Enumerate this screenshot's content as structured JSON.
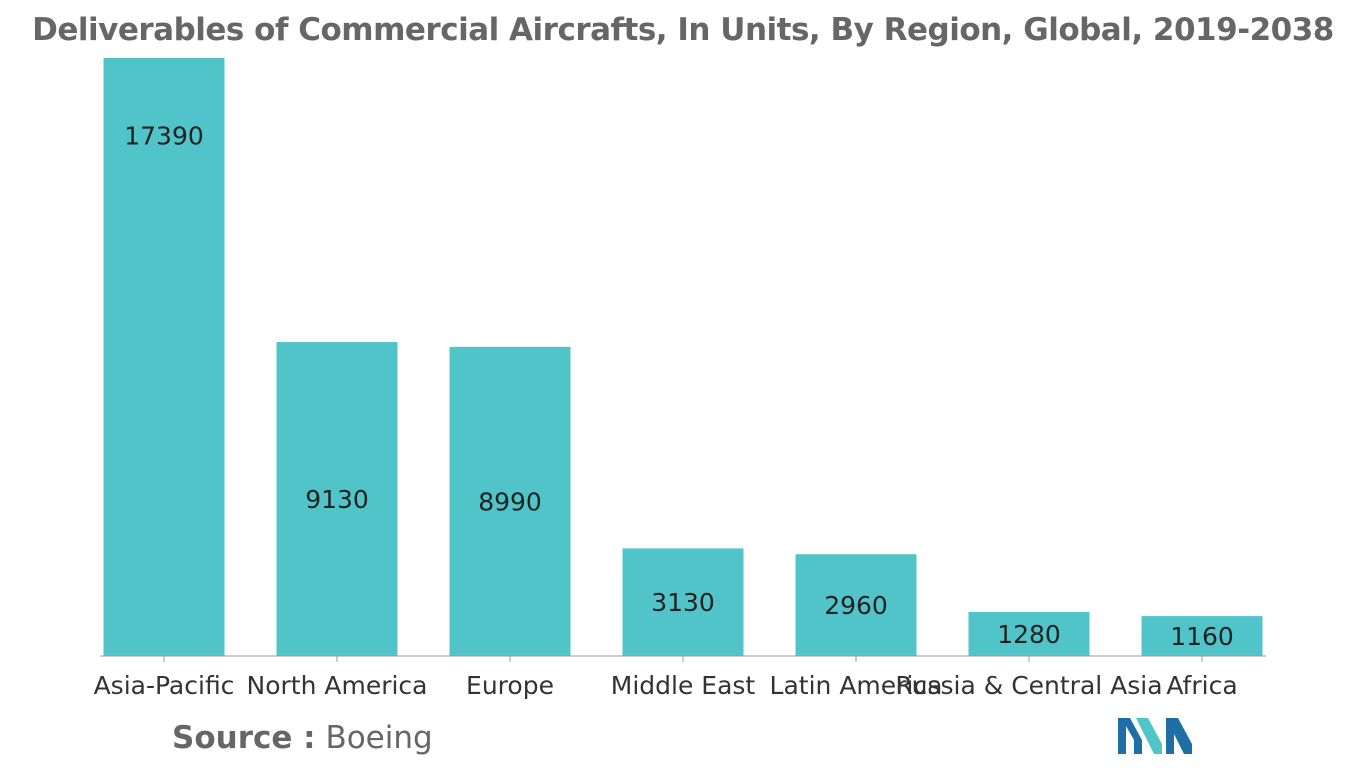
{
  "chart_data": {
    "type": "bar",
    "title": "Deliverables of Commercial Aircrafts, In Units, By Region, Global, 2019-2038",
    "categories": [
      "Asia-Pacific",
      "North America",
      "Europe",
      "Middle East",
      "Latin America",
      "Russia & Central Asia",
      "Africa"
    ],
    "values": [
      17390,
      9130,
      8990,
      3130,
      2960,
      1280,
      1160
    ],
    "xlabel": "",
    "ylabel": "",
    "ylim": [
      0,
      17390
    ],
    "grid": false,
    "legend": "none",
    "bar_color": "#50c4c9",
    "value_labels": [
      "17390",
      "9130",
      "8990",
      "3130",
      "2960",
      "1280",
      "1160"
    ]
  },
  "source": {
    "label": "Source :",
    "value": "Boeing"
  },
  "logo": {
    "icon": "mordor-intelligence-logo-icon",
    "colors": [
      "#1f6fa6",
      "#50c4c9"
    ]
  }
}
